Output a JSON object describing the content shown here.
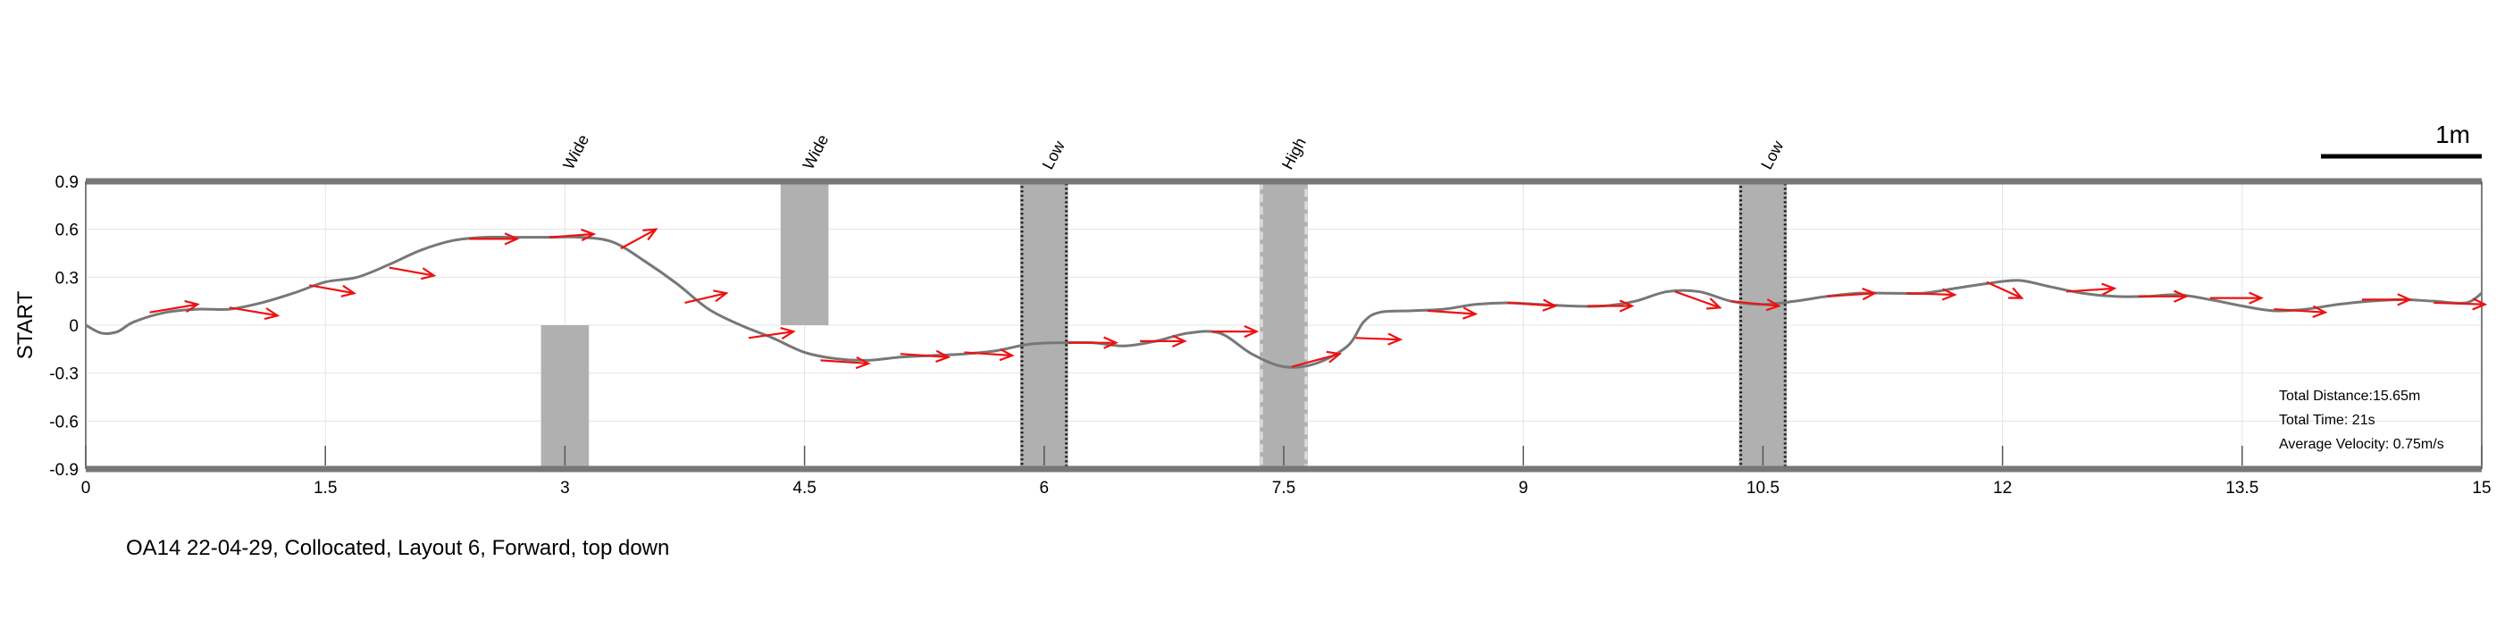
{
  "chart_data": {
    "type": "line",
    "ylabel": "START",
    "xlim": [
      0,
      15
    ],
    "ylim": [
      -0.9,
      0.9
    ],
    "x_ticks": [
      "0",
      "1.5",
      "3",
      "4.5",
      "6",
      "7.5",
      "9",
      "10.5",
      "12",
      "13.5",
      "15"
    ],
    "y_ticks": [
      "0.9",
      "0.6",
      "0.3",
      "0",
      "-0.3",
      "-0.6",
      "-0.9"
    ],
    "scale_bar_label": "1m",
    "caption": "OA14 22-04-29, Collocated, Layout 6, Forward, top down",
    "stats": {
      "distance": "Total Distance:15.65m",
      "time": "Total Time: 21s",
      "velocity": "Average Velocity: 0.75m/s"
    },
    "obstacles": [
      {
        "label": "Wide",
        "x0": 2.85,
        "x1": 3.15,
        "y0": -0.9,
        "y1": 0.0,
        "style": "solid"
      },
      {
        "label": "Wide",
        "x0": 4.35,
        "x1": 4.65,
        "y0": 0.0,
        "y1": 0.9,
        "style": "solid"
      },
      {
        "label": "Low",
        "x0": 5.85,
        "x1": 6.15,
        "y0": -0.9,
        "y1": 0.9,
        "style": "dotted"
      },
      {
        "label": "High",
        "x0": 7.35,
        "x1": 7.65,
        "y0": -0.9,
        "y1": 0.9,
        "style": "dashed"
      },
      {
        "label": "Low",
        "x0": 10.35,
        "x1": 10.65,
        "y0": -0.9,
        "y1": 0.9,
        "style": "dotted"
      }
    ],
    "series": [
      {
        "x": [
          0,
          0.1,
          0.2,
          0.3,
          0.5,
          0.7,
          0.9,
          1.1,
          1.3,
          1.5,
          1.7,
          1.9,
          2.1,
          2.3,
          2.5,
          2.7,
          2.9,
          3.1,
          3.3,
          3.5,
          3.7,
          3.9,
          4.1,
          4.3,
          4.5,
          4.7,
          4.9,
          5.1,
          5.3,
          5.5,
          5.7,
          5.9,
          6.1,
          6.3,
          6.5,
          6.7,
          6.9,
          7.1,
          7.3,
          7.5,
          7.7,
          7.9,
          8.0,
          8.1,
          8.3,
          8.5,
          8.7,
          8.9,
          9.1,
          9.3,
          9.5,
          9.7,
          9.9,
          10.1,
          10.3,
          10.5,
          10.7,
          10.9,
          11.1,
          11.3,
          11.5,
          11.7,
          11.9,
          12.1,
          12.3,
          12.5,
          12.7,
          12.9,
          13.1,
          13.3,
          13.5,
          13.7,
          13.9,
          14.1,
          14.3,
          14.5,
          14.7,
          14.9,
          15.0
        ],
        "y": [
          0.0,
          -0.05,
          -0.04,
          0.02,
          0.08,
          0.1,
          0.1,
          0.14,
          0.2,
          0.27,
          0.3,
          0.38,
          0.47,
          0.53,
          0.55,
          0.55,
          0.55,
          0.55,
          0.52,
          0.4,
          0.26,
          0.1,
          0.0,
          -0.08,
          -0.17,
          -0.21,
          -0.22,
          -0.2,
          -0.19,
          -0.18,
          -0.16,
          -0.12,
          -0.11,
          -0.11,
          -0.13,
          -0.1,
          -0.05,
          -0.05,
          -0.18,
          -0.26,
          -0.24,
          -0.13,
          0.02,
          0.08,
          0.09,
          0.1,
          0.13,
          0.14,
          0.13,
          0.12,
          0.12,
          0.15,
          0.21,
          0.21,
          0.15,
          0.13,
          0.15,
          0.18,
          0.2,
          0.2,
          0.2,
          0.23,
          0.26,
          0.28,
          0.24,
          0.2,
          0.18,
          0.18,
          0.19,
          0.16,
          0.12,
          0.09,
          0.1,
          0.13,
          0.15,
          0.16,
          0.15,
          0.14,
          0.2
        ]
      }
    ],
    "heading_arrows": [
      {
        "x": 0.4,
        "y": 0.08,
        "dx": 0.3,
        "dy": 0.05
      },
      {
        "x": 0.9,
        "y": 0.11,
        "dx": 0.3,
        "dy": -0.05
      },
      {
        "x": 1.4,
        "y": 0.25,
        "dx": 0.28,
        "dy": -0.05
      },
      {
        "x": 1.9,
        "y": 0.36,
        "dx": 0.28,
        "dy": -0.05
      },
      {
        "x": 2.4,
        "y": 0.54,
        "dx": 0.3,
        "dy": 0.0
      },
      {
        "x": 2.9,
        "y": 0.55,
        "dx": 0.28,
        "dy": 0.02
      },
      {
        "x": 3.35,
        "y": 0.48,
        "dx": 0.22,
        "dy": 0.12
      },
      {
        "x": 3.75,
        "y": 0.14,
        "dx": 0.26,
        "dy": 0.06
      },
      {
        "x": 4.15,
        "y": -0.08,
        "dx": 0.28,
        "dy": 0.04
      },
      {
        "x": 4.6,
        "y": -0.22,
        "dx": 0.3,
        "dy": -0.02
      },
      {
        "x": 5.1,
        "y": -0.18,
        "dx": 0.3,
        "dy": -0.02
      },
      {
        "x": 5.5,
        "y": -0.17,
        "dx": 0.3,
        "dy": -0.02
      },
      {
        "x": 6.15,
        "y": -0.11,
        "dx": 0.3,
        "dy": 0.0
      },
      {
        "x": 6.6,
        "y": -0.1,
        "dx": 0.28,
        "dy": 0.0
      },
      {
        "x": 7.05,
        "y": -0.04,
        "dx": 0.28,
        "dy": 0.0
      },
      {
        "x": 7.55,
        "y": -0.26,
        "dx": 0.3,
        "dy": 0.08
      },
      {
        "x": 7.95,
        "y": -0.08,
        "dx": 0.28,
        "dy": -0.01
      },
      {
        "x": 8.4,
        "y": 0.09,
        "dx": 0.3,
        "dy": -0.02
      },
      {
        "x": 8.9,
        "y": 0.14,
        "dx": 0.3,
        "dy": -0.02
      },
      {
        "x": 9.4,
        "y": 0.12,
        "dx": 0.28,
        "dy": 0.0
      },
      {
        "x": 9.95,
        "y": 0.21,
        "dx": 0.28,
        "dy": -0.1
      },
      {
        "x": 10.3,
        "y": 0.15,
        "dx": 0.3,
        "dy": -0.03
      },
      {
        "x": 10.9,
        "y": 0.18,
        "dx": 0.3,
        "dy": 0.02
      },
      {
        "x": 11.4,
        "y": 0.2,
        "dx": 0.3,
        "dy": -0.01
      },
      {
        "x": 11.9,
        "y": 0.27,
        "dx": 0.22,
        "dy": -0.1
      },
      {
        "x": 12.4,
        "y": 0.21,
        "dx": 0.3,
        "dy": 0.02
      },
      {
        "x": 12.85,
        "y": 0.18,
        "dx": 0.3,
        "dy": 0.0
      },
      {
        "x": 13.3,
        "y": 0.17,
        "dx": 0.32,
        "dy": 0.0
      },
      {
        "x": 13.7,
        "y": 0.1,
        "dx": 0.32,
        "dy": -0.02
      },
      {
        "x": 14.25,
        "y": 0.16,
        "dx": 0.3,
        "dy": 0.0
      },
      {
        "x": 14.7,
        "y": 0.14,
        "dx": 0.32,
        "dy": -0.01
      }
    ]
  },
  "colors": {
    "path": "#777777",
    "arrow": "#ee1111",
    "obstacle": "#b0b0b0",
    "frame": "#777777",
    "grid": "#e4e4e4"
  }
}
